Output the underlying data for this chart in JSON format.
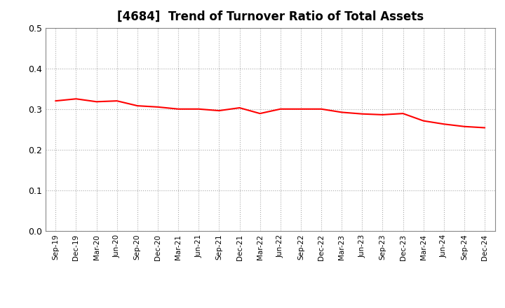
{
  "title": "[4684]  Trend of Turnover Ratio of Total Assets",
  "title_fontsize": 12,
  "line_color": "#FF0000",
  "line_width": 1.5,
  "background_color": "#FFFFFF",
  "grid_color": "#AAAAAA",
  "ylim": [
    0.0,
    0.5
  ],
  "yticks": [
    0.0,
    0.1,
    0.2,
    0.3,
    0.4,
    0.5
  ],
  "x_labels": [
    "Sep-19",
    "Dec-19",
    "Mar-20",
    "Jun-20",
    "Sep-20",
    "Dec-20",
    "Mar-21",
    "Jun-21",
    "Sep-21",
    "Dec-21",
    "Mar-22",
    "Jun-22",
    "Sep-22",
    "Dec-22",
    "Mar-23",
    "Jun-23",
    "Sep-23",
    "Dec-23",
    "Mar-24",
    "Jun-24",
    "Sep-24",
    "Dec-24"
  ],
  "values": [
    0.32,
    0.325,
    0.318,
    0.32,
    0.308,
    0.305,
    0.3,
    0.3,
    0.296,
    0.303,
    0.289,
    0.3,
    0.3,
    0.3,
    0.292,
    0.288,
    0.286,
    0.289,
    0.271,
    0.263,
    0.257,
    0.254
  ]
}
